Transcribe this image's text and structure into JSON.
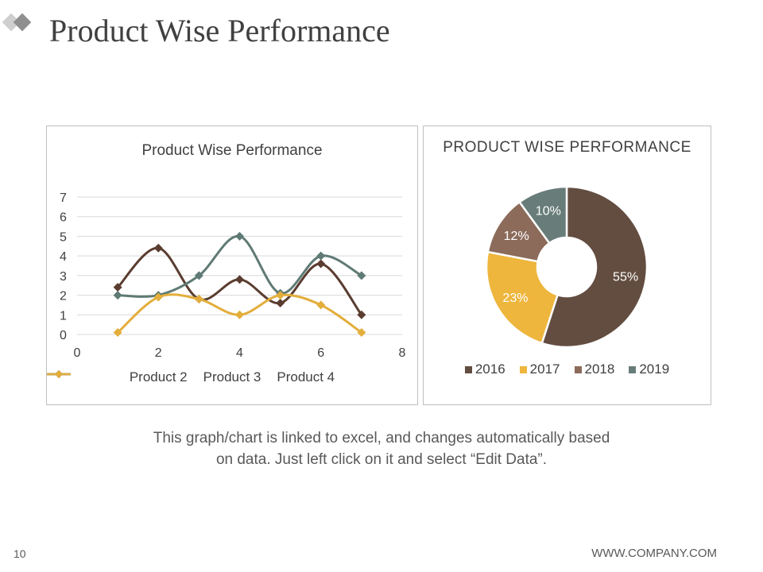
{
  "header": {
    "title": "Product Wise Performance"
  },
  "colors": {
    "product2": "#5a3d30",
    "product3": "#5f7a74",
    "product4": "#e3ae3b",
    "y2016": "#634d40",
    "y2017": "#eeb63d",
    "y2018": "#8c6b5b",
    "y2019": "#687d79",
    "grid": "#d9d9d9",
    "border": "#bfbfbf"
  },
  "chart_data": [
    {
      "type": "scatter",
      "subtype": "smooth-line-with-markers",
      "title": "Product Wise Performance",
      "xlabel": "",
      "ylabel": "",
      "xlim": [
        0,
        8
      ],
      "ylim": [
        0,
        7
      ],
      "x_ticks": [
        0,
        2,
        4,
        6,
        8
      ],
      "y_ticks": [
        0,
        1,
        2,
        3,
        4,
        5,
        6,
        7
      ],
      "grid": true,
      "legend_position": "bottom",
      "series": [
        {
          "name": "Product 2",
          "color": "#5a3d30",
          "marker": "diamond",
          "x": [
            1,
            2,
            3,
            4,
            5,
            6,
            7
          ],
          "values": [
            2.4,
            4.4,
            1.8,
            2.8,
            1.6,
            3.6,
            1.0
          ]
        },
        {
          "name": "Product 3",
          "color": "#5f7a74",
          "marker": "diamond",
          "x": [
            1,
            2,
            3,
            4,
            5,
            6,
            7
          ],
          "values": [
            2.0,
            2.0,
            3.0,
            5.0,
            2.1,
            4.0,
            3.0
          ]
        },
        {
          "name": "Product 4",
          "color": "#e3ae3b",
          "marker": "diamond",
          "x": [
            1,
            2,
            3,
            4,
            5,
            6,
            7
          ],
          "values": [
            0.1,
            1.9,
            1.8,
            1.0,
            2.0,
            1.5,
            0.1
          ]
        }
      ]
    },
    {
      "type": "pie",
      "subtype": "doughnut",
      "title": "PRODUCT WISE PERFORMANCE",
      "legend_position": "bottom",
      "categories": [
        "2016",
        "2017",
        "2018",
        "2019"
      ],
      "values": [
        55,
        23,
        12,
        10
      ],
      "labels": [
        "55%",
        "23%",
        "12%",
        "10%"
      ],
      "colors": [
        "#634d40",
        "#eeb63d",
        "#8c6b5b",
        "#687d79"
      ]
    }
  ],
  "caption": {
    "line1": "This graph/chart is linked to excel, and changes automatically based",
    "line2": "on data. Just left click on it and select “Edit Data”."
  },
  "footer": {
    "page_number": "10",
    "url": "WWW.COMPANY.COM"
  }
}
